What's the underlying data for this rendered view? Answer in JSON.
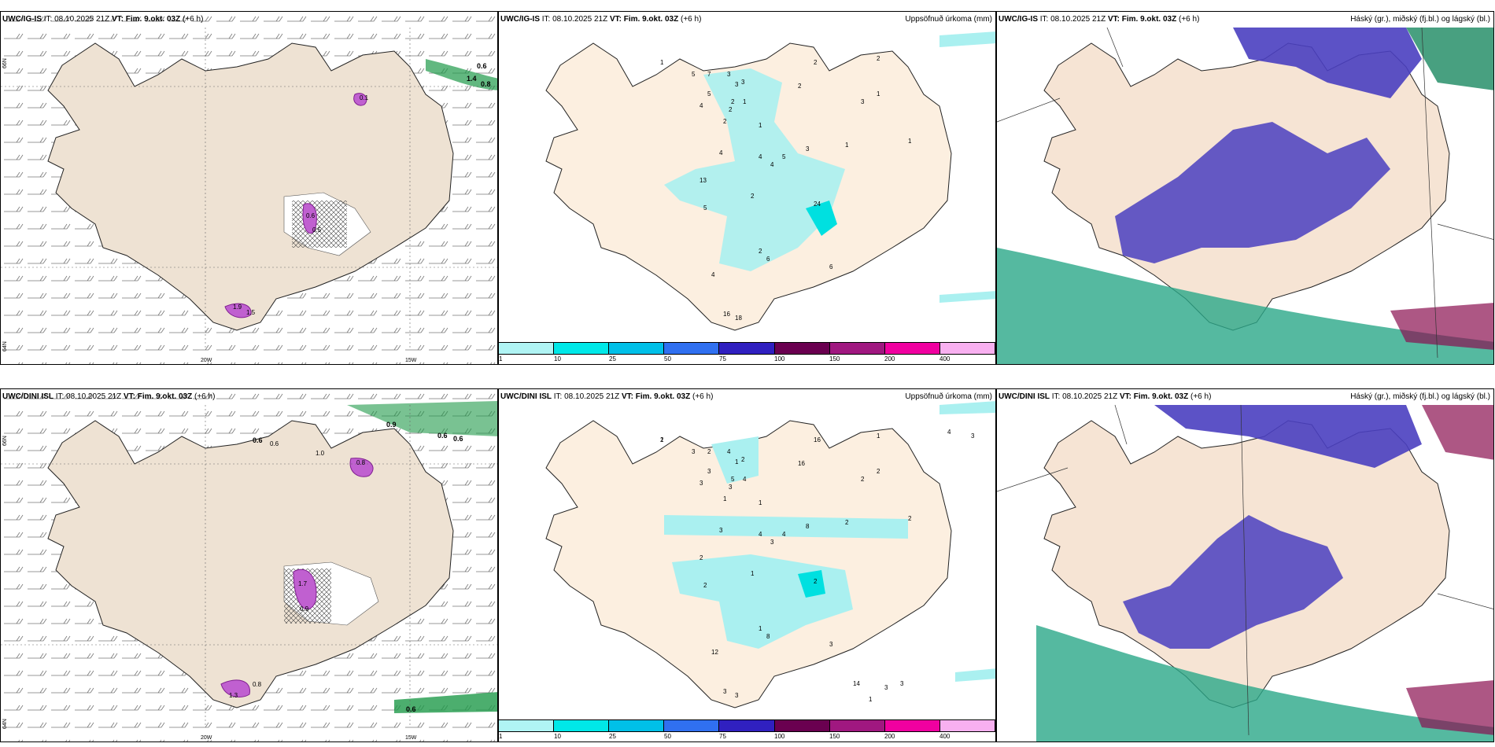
{
  "rows": [
    {
      "model": "UWC/IG-IS",
      "panels": [
        {
          "it": "IT: 08.10.2025 21Z",
          "vt_label": "VT:",
          "vt": "Fim. 9.okt. 03Z",
          "lead": "(+6 h)",
          "right": ""
        },
        {
          "it": "IT: 08.10.2025 21Z",
          "vt_label": "VT:",
          "vt": "Fim. 9.okt. 03Z",
          "lead": "(+6 h)",
          "right": "Uppsöfnuð úrkoma (mm)"
        },
        {
          "it": "IT: 08.10.2025 21Z",
          "vt_label": "VT:",
          "vt": "Fim. 9.okt. 03Z",
          "lead": "(+6 h)",
          "right": "Háský (gr.), miðský (fj.bl.) og lágský (bl.)"
        }
      ],
      "precip_values": [
        "1",
        "5",
        "7",
        "3",
        "3",
        "3",
        "5",
        "4",
        "2",
        "2",
        "2",
        "1",
        "1",
        "4",
        "4",
        "4",
        "5",
        "2",
        "5",
        "13",
        "24",
        "2",
        "4",
        "6",
        "6",
        "16",
        "18",
        "2",
        "2",
        "1",
        "1",
        "3",
        "2",
        "3",
        "1"
      ],
      "wind_contour_labels": [
        "0.6",
        "0.8",
        "1.4",
        "0.1",
        "0.6",
        "1.5",
        "1.9",
        "0.5"
      ]
    },
    {
      "model": "UWC/DINI ISL",
      "panels": [
        {
          "it": "IT: 08.10.2025 21Z",
          "vt_label": "VT:",
          "vt": "Fim. 9.okt. 03Z",
          "lead": "(+6 h)",
          "right": ""
        },
        {
          "it": "IT: 08.10.2025 21Z",
          "vt_label": "VT:",
          "vt": "Fim. 9.okt. 03Z",
          "lead": "(+6 h)",
          "right": "Uppsöfnuð úrkoma (mm)"
        },
        {
          "it": "IT: 08.10.2025 21Z",
          "vt_label": "VT:",
          "vt": "Fim. 9.okt. 03Z",
          "lead": "(+6 h)",
          "right": "Háský (gr.), miðský (fj.bl.) og lágský (bl.)"
        }
      ],
      "precip_values": [
        "1",
        "3",
        "2",
        "4",
        "1",
        "2",
        "3",
        "3",
        "5",
        "3",
        "1",
        "4",
        "1",
        "3",
        "4",
        "3",
        "4",
        "1",
        "2",
        "2",
        "2",
        "1",
        "12",
        "8",
        "3",
        "3",
        "3",
        "16",
        "16",
        "2",
        "2",
        "2",
        "1",
        "8",
        "2",
        "14",
        "1",
        "3",
        "3",
        "3",
        "4",
        "2"
      ],
      "wind_contour_labels": [
        "0.6",
        "0.6",
        "0.9",
        "0.6",
        "0.6",
        "0.6",
        "1.0",
        "0.8",
        "1.7",
        "0.9",
        "0.8",
        "1.3"
      ]
    }
  ],
  "axis_labels": {
    "lon_a": "20W",
    "lon_b": "15W",
    "lat_a": "66N",
    "lat_b": "64N"
  },
  "colorbar": {
    "ticks": [
      "1",
      "10",
      "25",
      "50",
      "75",
      "100",
      "150",
      "200",
      "400"
    ],
    "colors": [
      "#b0f4f4",
      "#00e8e8",
      "#00c0e8",
      "#3070f0",
      "#3020c0",
      "#6a0050",
      "#a01880",
      "#f000a0",
      "#f8b0f0"
    ]
  },
  "colors": {
    "land_wind": "#eee2d3",
    "land_precip": "#fcefe0",
    "land_cloud": "#f6e4d4",
    "precip_fill": "#aaf0f0",
    "cloud_mid": "#4a3fc0",
    "cloud_low": "#2aa888",
    "wind_hatch": "#b040c0"
  }
}
